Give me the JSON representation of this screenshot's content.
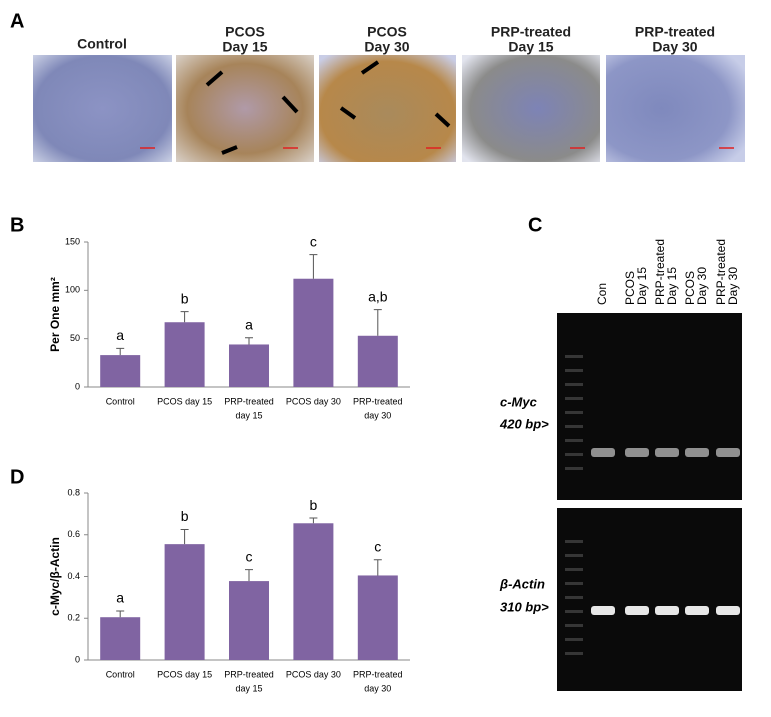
{
  "panel_a": {
    "label": "A",
    "images": [
      {
        "title": [
          "Control"
        ]
      },
      {
        "title": [
          "PCOS",
          "Day 15"
        ]
      },
      {
        "title": [
          "PCOS",
          "Day 30"
        ]
      },
      {
        "title": [
          "PRP-treated",
          "Day 15"
        ]
      },
      {
        "title": [
          "PRP-treated",
          "Day 30"
        ]
      }
    ]
  },
  "chart_data": [
    {
      "type": "bar",
      "label": "B",
      "ylabel": "Per One mm²",
      "categories": [
        "Control",
        "PCOS day 15",
        [
          "PRP-treated",
          "day 15"
        ],
        "PCOS day 30",
        [
          "PRP-treated",
          "day 30"
        ]
      ],
      "values": [
        33,
        67,
        44,
        112,
        53
      ],
      "errors": [
        7,
        11,
        7,
        25,
        27
      ],
      "annotations": [
        "a",
        "b",
        "a",
        "c",
        "a,b"
      ],
      "ylim": [
        0,
        150
      ],
      "yticks": [
        0,
        50,
        100,
        150
      ],
      "color": "#8064a2"
    },
    {
      "type": "bar",
      "label": "D",
      "ylabel": "c-Myc/β-Actin",
      "categories": [
        "Control",
        "PCOS day 15",
        [
          "PRP-treated",
          "day 15"
        ],
        "PCOS day 30",
        [
          "PRP-treated",
          "day 30"
        ]
      ],
      "values": [
        0.205,
        0.555,
        0.378,
        0.655,
        0.405
      ],
      "errors": [
        0.03,
        0.07,
        0.055,
        0.025,
        0.075
      ],
      "annotations": [
        "a",
        "b",
        "c",
        "b",
        "c"
      ],
      "ylim": [
        0,
        0.8
      ],
      "yticks": [
        0,
        0.2,
        0.4,
        0.6,
        0.8
      ],
      "color": "#8064a2"
    }
  ],
  "panel_c": {
    "label": "C",
    "lanes": [
      [
        "Con"
      ],
      [
        "PCOS",
        "Day 15"
      ],
      [
        "PRP-treated",
        "Day 15"
      ],
      [
        "PCOS",
        "Day 30"
      ],
      [
        "PRP-treated",
        "Day 30"
      ]
    ],
    "genes": [
      {
        "name": "c-Myc",
        "size": "420 bp>"
      },
      {
        "name": "β-Actin",
        "size": "310 bp>"
      }
    ]
  }
}
